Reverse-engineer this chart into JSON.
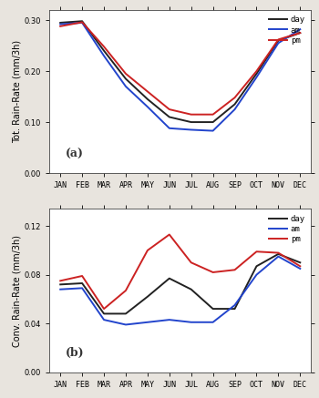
{
  "months": [
    "JAN",
    "FEB",
    "MAR",
    "APR",
    "MAY",
    "JUN",
    "JUL",
    "AUG",
    "SEP",
    "OCT",
    "NOV",
    "DEC"
  ],
  "panel_a": {
    "ylabel": "Tot. Rain-Rate (mm/3h)",
    "label": "(a)",
    "ylim": [
      0.0,
      0.32
    ],
    "yticks": [
      0.0,
      0.1,
      0.2,
      0.3
    ],
    "day": [
      0.295,
      0.298,
      0.24,
      0.185,
      0.145,
      0.11,
      0.1,
      0.1,
      0.135,
      0.195,
      0.26,
      0.275
    ],
    "am": [
      0.292,
      0.295,
      0.23,
      0.17,
      0.13,
      0.088,
      0.085,
      0.083,
      0.125,
      0.188,
      0.255,
      0.282
    ],
    "pm": [
      0.288,
      0.296,
      0.248,
      0.195,
      0.16,
      0.125,
      0.115,
      0.115,
      0.148,
      0.2,
      0.262,
      0.275
    ]
  },
  "panel_b": {
    "ylabel": "Conv. Rain-Rate (mm/3h)",
    "label": "(b)",
    "ylim": [
      0.0,
      0.134
    ],
    "yticks": [
      0.0,
      0.04,
      0.08,
      0.12
    ],
    "day": [
      0.072,
      0.073,
      0.048,
      0.048,
      0.062,
      0.077,
      0.068,
      0.052,
      0.052,
      0.087,
      0.097,
      0.09
    ],
    "am": [
      0.068,
      0.069,
      0.043,
      0.039,
      0.041,
      0.043,
      0.041,
      0.041,
      0.055,
      0.08,
      0.095,
      0.085
    ],
    "pm": [
      0.075,
      0.079,
      0.052,
      0.067,
      0.1,
      0.113,
      0.09,
      0.082,
      0.084,
      0.099,
      0.098,
      0.087
    ]
  },
  "colors": {
    "day": "#222222",
    "am": "#2244cc",
    "pm": "#cc2222"
  },
  "linewidth": 1.4,
  "bg_color": "#e8e4de",
  "plot_bg": "#ffffff",
  "tick_label_fontsize": 6.0,
  "ylabel_fontsize": 7.0,
  "legend_fontsize": 6.5,
  "label_fontsize": 9.0
}
